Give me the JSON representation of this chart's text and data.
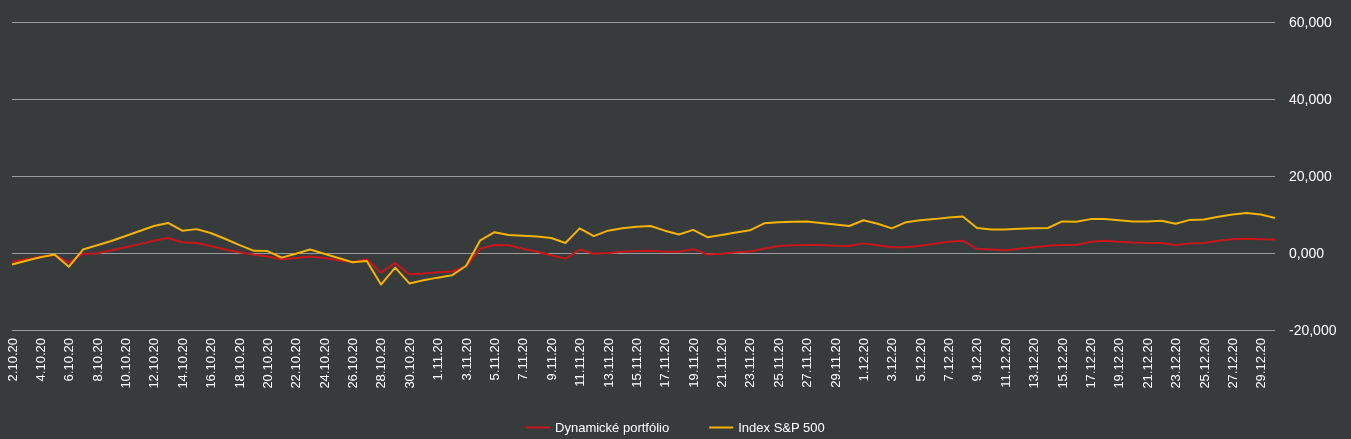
{
  "chart_data": {
    "type": "line",
    "categories": [
      "2.10.20",
      null,
      "4.10.20",
      null,
      "6.10.20",
      null,
      "8.10.20",
      null,
      "10.10.20",
      null,
      "12.10.20",
      null,
      "14.10.20",
      null,
      "16.10.20",
      null,
      "18.10.20",
      null,
      "20.10.20",
      null,
      "22.10.20",
      null,
      "24.10.20",
      null,
      "26.10.20",
      null,
      "28.10.20",
      null,
      "30.10.20",
      null,
      "1.11.20",
      null,
      "3.11.20",
      null,
      "5.11.20",
      null,
      "7.11.20",
      null,
      "9.11.20",
      null,
      "11.11.20",
      null,
      "13.11.20",
      null,
      "15.11.20",
      null,
      "17.11.20",
      null,
      "19.11.20",
      null,
      "21.11.20",
      null,
      "23.11.20",
      null,
      "25.11.20",
      null,
      "27.11.20",
      null,
      "29.11.20",
      null,
      "1.12.20",
      null,
      "3.12.20",
      null,
      "5.12.20",
      null,
      "7.12.20",
      null,
      "9.12.20",
      null,
      "11.12.20",
      null,
      "13.12.20",
      null,
      "15.12.20",
      null,
      "17.12.20",
      null,
      "19.12.20",
      null,
      "21.12.20",
      null,
      "23.12.20",
      null,
      "25.12.20",
      null,
      "27.12.20",
      null,
      "29.12.20",
      null
    ],
    "series": [
      {
        "name": "Dynamické portfólio",
        "color": "#c8161d",
        "values": [
          -2300,
          -1600,
          -1000,
          -500,
          -2500,
          -200,
          -100,
          700,
          1500,
          2300,
          3200,
          3900,
          2800,
          2600,
          1800,
          900,
          200,
          -400,
          -900,
          -1600,
          -1300,
          -900,
          -1300,
          -1900,
          -2400,
          -1600,
          -5100,
          -2600,
          -5500,
          -5300,
          -5000,
          -4800,
          -3500,
          1100,
          2100,
          2000,
          1100,
          300,
          -600,
          -1500,
          900,
          -200,
          0,
          300,
          500,
          600,
          300,
          300,
          1000,
          -400,
          -200,
          200,
          400,
          1100,
          1800,
          2000,
          2100,
          2100,
          1900,
          1800,
          2500,
          2000,
          1500,
          1500,
          1900,
          2400,
          2900,
          3200,
          1100,
          900,
          700,
          1100,
          1500,
          1900,
          2100,
          2100,
          2900,
          3200,
          2900,
          2700,
          2600,
          2600,
          2100,
          2500,
          2600,
          3200,
          3600,
          3700,
          3600,
          3500
        ]
      },
      {
        "name": "Index S&P 500",
        "color": "#f5b400",
        "values": [
          -3000,
          -2000,
          -1100,
          -400,
          -3600,
          900,
          2000,
          3100,
          4400,
          5700,
          7000,
          7800,
          5800,
          6200,
          5200,
          3700,
          2100,
          600,
          500,
          -1200,
          -200,
          900,
          -200,
          -1300,
          -2400,
          -2100,
          -8200,
          -3800,
          -7900,
          -7100,
          -6400,
          -5800,
          -3300,
          3300,
          5400,
          4700,
          4500,
          4300,
          3900,
          2600,
          6400,
          4400,
          5800,
          6400,
          6800,
          7000,
          5800,
          4800,
          6000,
          4100,
          4700,
          5300,
          5900,
          7700,
          8000,
          8100,
          8200,
          7800,
          7400,
          7000,
          8500,
          7600,
          6400,
          8000,
          8500,
          8800,
          9200,
          9500,
          6500,
          6100,
          6100,
          6300,
          6400,
          6500,
          8200,
          8100,
          8800,
          8800,
          8500,
          8200,
          8200,
          8400,
          7600,
          8600,
          8700,
          9400,
          10000,
          10400,
          10000,
          9100
        ]
      }
    ],
    "ylim": [
      -20000,
      60000
    ],
    "yticks": [
      {
        "value": -20000,
        "label": "-20,000"
      },
      {
        "value": 0,
        "label": "0,000"
      },
      {
        "value": 20000,
        "label": "20,000"
      },
      {
        "value": 40000,
        "label": "40,000"
      },
      {
        "value": 60000,
        "label": "60,000"
      }
    ],
    "grid": "y",
    "legend": "bottom",
    "marker": "none",
    "line_style": "solid"
  }
}
